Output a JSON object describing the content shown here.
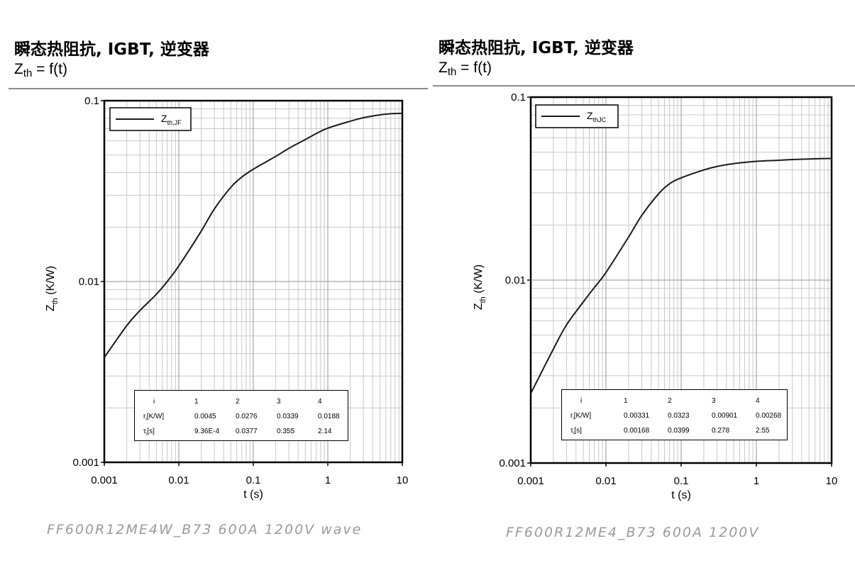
{
  "panels": [
    {
      "id": "left",
      "title": "瞬态热阻抗, IGBT, 逆变器",
      "subtitle_z": "Z",
      "subtitle_sub": "th",
      "subtitle_rest": " = f(t)",
      "caption": "FF600R12ME4W_B73 600A 1200V wave",
      "legend_main": "Z",
      "legend_sub": "th,JF",
      "table": {
        "header": [
          "i",
          "1",
          "2",
          "3",
          "4"
        ],
        "rows": [
          {
            "label_main": "r",
            "label_sub": "i",
            "label_rest": "[K/W]",
            "values": [
              "0.0045",
              "0.0276",
              "0.0339",
              "0.0188"
            ]
          },
          {
            "label_main": "τ",
            "label_sub": "i",
            "label_rest": "[s]",
            "values": [
              "9.36E-4",
              "0.0377",
              "0.355",
              "2.14"
            ]
          }
        ]
      }
    },
    {
      "id": "right",
      "title": "瞬态热阻抗, IGBT, 逆变器",
      "subtitle_z": "Z",
      "subtitle_sub": "th",
      "subtitle_rest": " = f(t)",
      "caption": "FF600R12ME4_B73 600A 1200V",
      "legend_main": "Z",
      "legend_sub": "thJC",
      "table": {
        "header": [
          "i",
          "1",
          "2",
          "3",
          "4"
        ],
        "rows": [
          {
            "label_main": "r",
            "label_sub": "i",
            "label_rest": "[K/W]",
            "values": [
              "0.00331",
              "0.0323",
              "0.00901",
              "0.00268"
            ]
          },
          {
            "label_main": "τ",
            "label_sub": "i",
            "label_rest": "[s]",
            "values": [
              "0.00168",
              "0.0399",
              "0.278",
              "2.55"
            ]
          }
        ]
      }
    }
  ],
  "chart_data": [
    {
      "type": "line",
      "xscale": "log",
      "yscale": "log",
      "xlim": [
        0.001,
        10
      ],
      "ylim": [
        0.001,
        0.1
      ],
      "xticks": [
        0.001,
        0.01,
        0.1,
        1,
        10
      ],
      "xtick_labels": [
        "0.001",
        "0.01",
        "0.1",
        "1",
        "10"
      ],
      "yticks": [
        0.001,
        0.01,
        0.1
      ],
      "ytick_labels": [
        "0.001",
        "0.01",
        "0.1"
      ],
      "xlabel": "t (s)",
      "ylabel_main": "Z",
      "ylabel_sub": "th",
      "ylabel_rest": " (K/W)",
      "grid": true,
      "legend": "top-left",
      "series": [
        {
          "name": "Zth,JF",
          "x": [
            0.001,
            0.002,
            0.003,
            0.005,
            0.007,
            0.01,
            0.02,
            0.03,
            0.05,
            0.07,
            0.1,
            0.2,
            0.3,
            0.5,
            0.7,
            1,
            2,
            3,
            5,
            7,
            10
          ],
          "y": [
            0.0038,
            0.0057,
            0.0069,
            0.0085,
            0.01,
            0.0122,
            0.019,
            0.0252,
            0.0332,
            0.0378,
            0.0418,
            0.0492,
            0.0545,
            0.061,
            0.0658,
            0.0705,
            0.077,
            0.0805,
            0.0835,
            0.0847,
            0.0852
          ]
        }
      ]
    },
    {
      "type": "line",
      "xscale": "log",
      "yscale": "log",
      "xlim": [
        0.001,
        10
      ],
      "ylim": [
        0.001,
        0.1
      ],
      "xticks": [
        0.001,
        0.01,
        0.1,
        1,
        10
      ],
      "xtick_labels": [
        "0.001",
        "0.01",
        "0.1",
        "1",
        "10"
      ],
      "yticks": [
        0.001,
        0.01,
        0.1
      ],
      "ytick_labels": [
        "0.001",
        "0.01",
        "0.1"
      ],
      "xlabel": "t (s)",
      "ylabel_main": "Z",
      "ylabel_sub": "th",
      "ylabel_rest": " (K/W)",
      "grid": true,
      "legend": "top-left",
      "series": [
        {
          "name": "ZthJC",
          "x": [
            0.001,
            0.002,
            0.003,
            0.005,
            0.007,
            0.01,
            0.02,
            0.03,
            0.05,
            0.07,
            0.1,
            0.2,
            0.3,
            0.5,
            0.7,
            1,
            2,
            3,
            5,
            7,
            10
          ],
          "y": [
            0.0024,
            0.0042,
            0.0057,
            0.0076,
            0.0091,
            0.011,
            0.0172,
            0.0226,
            0.0296,
            0.0336,
            0.0362,
            0.04,
            0.0418,
            0.0433,
            0.044,
            0.0446,
            0.0452,
            0.0456,
            0.0459,
            0.0461,
            0.0462
          ]
        }
      ]
    }
  ]
}
